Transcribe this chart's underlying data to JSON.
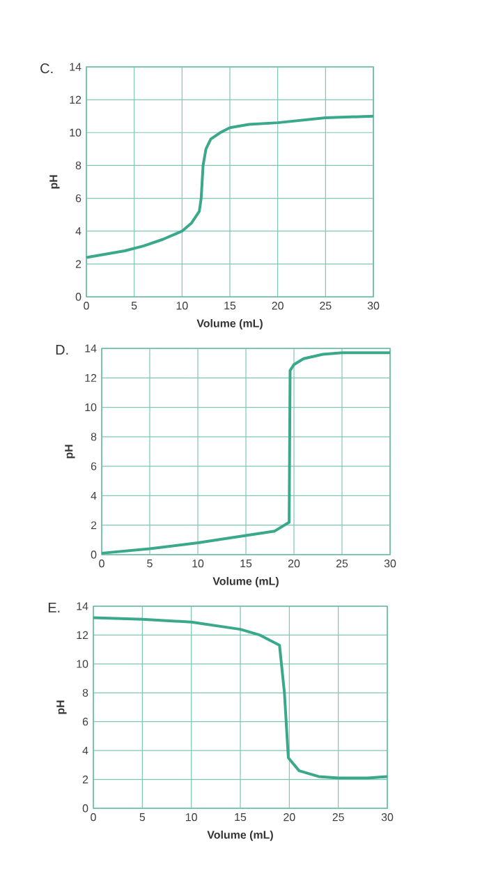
{
  "chart_data": [
    {
      "type": "line",
      "title": "C.",
      "xlabel": "Volume (mL)",
      "ylabel": "pH",
      "color": "#3aa88a",
      "grid": true,
      "xlim": [
        0,
        30
      ],
      "ylim": [
        0,
        14
      ],
      "xticks": [
        0,
        5,
        10,
        15,
        20,
        25,
        30
      ],
      "yticks": [
        0,
        2,
        4,
        6,
        8,
        10,
        12,
        14
      ],
      "x": [
        0,
        2,
        4,
        6,
        8,
        10,
        11,
        11.8,
        12,
        12.2,
        12.5,
        13,
        14,
        15,
        17,
        20,
        25,
        30
      ],
      "values": [
        2.4,
        2.6,
        2.8,
        3.1,
        3.5,
        4.0,
        4.5,
        5.2,
        6.0,
        8.0,
        9.0,
        9.6,
        10.0,
        10.3,
        10.5,
        10.6,
        10.9,
        11.0
      ]
    },
    {
      "type": "line",
      "title": "D.",
      "xlabel": "Volume (mL)",
      "ylabel": "pH",
      "color": "#3aa88a",
      "grid": true,
      "xlim": [
        0,
        30
      ],
      "ylim": [
        0,
        14
      ],
      "xticks": [
        0,
        5,
        10,
        15,
        20,
        25,
        30
      ],
      "yticks": [
        0,
        2,
        4,
        6,
        8,
        10,
        12,
        14
      ],
      "x": [
        0,
        5,
        10,
        15,
        18,
        19.5,
        19.6,
        20,
        21,
        23,
        25,
        30
      ],
      "values": [
        0.1,
        0.4,
        0.8,
        1.3,
        1.6,
        2.2,
        12.5,
        12.9,
        13.3,
        13.6,
        13.7,
        13.7
      ]
    },
    {
      "type": "line",
      "title": "E.",
      "xlabel": "Volume (mL)",
      "ylabel": "pH",
      "color": "#3aa88a",
      "grid": true,
      "xlim": [
        0,
        30
      ],
      "ylim": [
        0,
        14
      ],
      "xticks": [
        0,
        5,
        10,
        15,
        20,
        25,
        30
      ],
      "yticks": [
        0,
        2,
        4,
        6,
        8,
        10,
        12,
        14
      ],
      "x": [
        0,
        5,
        10,
        15,
        17,
        19,
        19.5,
        19.9,
        21,
        23,
        25,
        28,
        30
      ],
      "values": [
        13.2,
        13.1,
        12.9,
        12.4,
        12.0,
        11.3,
        8.0,
        3.5,
        2.6,
        2.2,
        2.1,
        2.1,
        2.2
      ]
    }
  ]
}
